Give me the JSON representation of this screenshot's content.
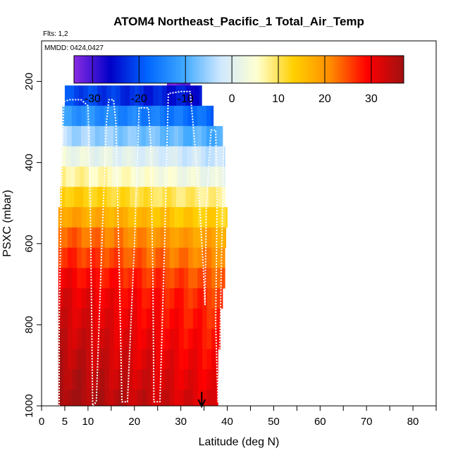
{
  "chart_data": {
    "type": "heatmap",
    "title": "ATOM4 Northeast_Pacific_1 Total_Air_Temp",
    "annotations": {
      "flights": "Flts: 1,2",
      "dates": "MMDD: 0424,0427"
    },
    "xlabel": "Latitude (deg N)",
    "ylabel": "PSXC (mbar)",
    "xlim": [
      0,
      85
    ],
    "ylim": [
      1000,
      100
    ],
    "x_ticks": [
      0,
      5,
      10,
      20,
      30,
      40,
      50,
      60,
      70,
      80
    ],
    "x_tick_labels": [
      "0",
      "5",
      "10",
      "20",
      "30",
      "40",
      "50",
      "60",
      "70",
      "80"
    ],
    "x_minor_ticks": [
      15,
      25,
      35,
      45,
      55,
      65,
      75,
      85
    ],
    "y_ticks": [
      200,
      400,
      600,
      800,
      1000
    ],
    "y_tick_labels": [
      "200",
      "400",
      "600",
      "800",
      "1000"
    ],
    "colorbar": {
      "range": [
        -34,
        37
      ],
      "ticks": [
        -30,
        -20,
        -10,
        0,
        10,
        20,
        30
      ],
      "tick_labels": [
        "-30",
        "-20",
        "-10",
        "0",
        "10",
        "20",
        "30"
      ],
      "colors": [
        "#8a2be2",
        "#0000c8",
        "#0066ff",
        "#3fa9ff",
        "#cfe8ff",
        "#ffffd0",
        "#ffd000",
        "#ff8c00",
        "#ff0000",
        "#a01010"
      ]
    },
    "marker": {
      "type": "arrow",
      "latitude": 34.5
    },
    "flight_track": [
      [
        3.8,
        1000
      ],
      [
        3.8,
        800
      ],
      [
        4.2,
        500
      ],
      [
        4.8,
        250
      ],
      [
        6.0,
        245
      ],
      [
        8.5,
        245
      ],
      [
        10.0,
        260
      ],
      [
        10.5,
        500
      ],
      [
        10.8,
        800
      ],
      [
        11.0,
        1000
      ],
      [
        11.8,
        990
      ],
      [
        13.0,
        600
      ],
      [
        14.0,
        300
      ],
      [
        14.5,
        245
      ],
      [
        15.5,
        245
      ],
      [
        16.0,
        300
      ],
      [
        16.8,
        700
      ],
      [
        17.3,
        990
      ],
      [
        18.5,
        990
      ],
      [
        20.0,
        600
      ],
      [
        21.0,
        265
      ],
      [
        23.0,
        265
      ],
      [
        23.5,
        350
      ],
      [
        24.0,
        700
      ],
      [
        24.2,
        990
      ],
      [
        25.5,
        990
      ],
      [
        26.5,
        600
      ],
      [
        27.3,
        230
      ],
      [
        30.0,
        225
      ],
      [
        32.0,
        225
      ],
      [
        33.0,
        350
      ],
      [
        34.0,
        500
      ],
      [
        34.8,
        650
      ],
      [
        35.2,
        750
      ],
      [
        35.5,
        500
      ],
      [
        36.5,
        320
      ],
      [
        37.5,
        320
      ],
      [
        37.8,
        500
      ],
      [
        37.5,
        800
      ],
      [
        38.0,
        990
      ],
      [
        38.5,
        800
      ],
      [
        39.0,
        500
      ],
      [
        39.3,
        320
      ],
      [
        39.7,
        330
      ],
      [
        39.7,
        450
      ]
    ],
    "temperature_profile_c": [
      {
        "p": 175,
        "value": -30
      },
      {
        "p": 225,
        "value": -22
      },
      {
        "p": 275,
        "value": -14
      },
      {
        "p": 325,
        "value": -6
      },
      {
        "p": 375,
        "value": 1
      },
      {
        "p": 425,
        "value": 6
      },
      {
        "p": 475,
        "value": 12
      },
      {
        "p": 525,
        "value": 17
      },
      {
        "p": 575,
        "value": 22
      },
      {
        "p": 625,
        "value": 25
      },
      {
        "p": 675,
        "value": 28
      },
      {
        "p": 725,
        "value": 30
      },
      {
        "p": 775,
        "value": 31
      },
      {
        "p": 825,
        "value": 32
      },
      {
        "p": 875,
        "value": 33
      },
      {
        "p": 925,
        "value": 34
      },
      {
        "p": 975,
        "value": 35
      }
    ],
    "coverage": [
      {
        "p_min": 160,
        "p_max": 210,
        "lat_min": 27,
        "lat_max": 32
      },
      {
        "p_min": 210,
        "p_max": 260,
        "lat_min": 5,
        "lat_max": 34.5
      },
      {
        "p_min": 260,
        "p_max": 310,
        "lat_min": 4.5,
        "lat_max": 37
      },
      {
        "p_min": 310,
        "p_max": 360,
        "lat_min": 4.5,
        "lat_max": 39
      },
      {
        "p_min": 360,
        "p_max": 410,
        "lat_min": 4.3,
        "lat_max": 39.5
      },
      {
        "p_min": 410,
        "p_max": 460,
        "lat_min": 4.2,
        "lat_max": 39.5
      },
      {
        "p_min": 460,
        "p_max": 510,
        "lat_min": 4.0,
        "lat_max": 39.5
      },
      {
        "p_min": 510,
        "p_max": 560,
        "lat_min": 3.6,
        "lat_max": 40
      },
      {
        "p_min": 560,
        "p_max": 610,
        "lat_min": 3.6,
        "lat_max": 39.7
      },
      {
        "p_min": 610,
        "p_max": 660,
        "lat_min": 3.6,
        "lat_max": 39.5
      },
      {
        "p_min": 660,
        "p_max": 710,
        "lat_min": 3.6,
        "lat_max": 39.5
      },
      {
        "p_min": 710,
        "p_max": 760,
        "lat_min": 3.6,
        "lat_max": 39.0
      },
      {
        "p_min": 760,
        "p_max": 810,
        "lat_min": 3.6,
        "lat_max": 38.5
      },
      {
        "p_min": 810,
        "p_max": 860,
        "lat_min": 3.6,
        "lat_max": 38.5
      },
      {
        "p_min": 860,
        "p_max": 910,
        "lat_min": 3.6,
        "lat_max": 38.0
      },
      {
        "p_min": 910,
        "p_max": 960,
        "lat_min": 3.6,
        "lat_max": 38.0
      },
      {
        "p_min": 960,
        "p_max": 1000,
        "lat_min": 3.6,
        "lat_max": 38.0
      }
    ]
  }
}
